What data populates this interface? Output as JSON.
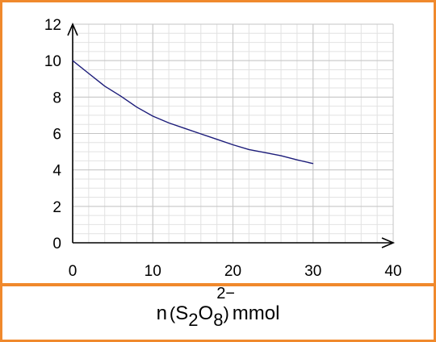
{
  "chart_data": {
    "type": "line",
    "title": "",
    "xlabel": "n(S2O8 2−) mmol",
    "ylabel": "",
    "xlim": [
      0,
      40
    ],
    "ylim": [
      0,
      12
    ],
    "x_ticks": [
      "0",
      "10",
      "20",
      "30",
      "40"
    ],
    "y_ticks": [
      "0",
      "2",
      "4",
      "6",
      "8",
      "10",
      "12"
    ],
    "grid": true,
    "series": [
      {
        "x": [
          0,
          2,
          4,
          6,
          8,
          10,
          12,
          14,
          16,
          18,
          20,
          22,
          24,
          26,
          28,
          30
        ],
        "values": [
          10.0,
          9.3,
          8.6,
          8.05,
          7.45,
          6.95,
          6.58,
          6.28,
          5.98,
          5.68,
          5.38,
          5.12,
          4.95,
          4.78,
          4.55,
          4.35
        ]
      }
    ]
  },
  "caption": {
    "n": "n",
    "open": "(",
    "s": "S",
    "sub2": "2",
    "o": "O",
    "sub8": "8",
    "sup": "2−",
    "close": ")",
    "unit": "mmol"
  },
  "colors": {
    "border": "#f0892c",
    "curve": "#1c1c7a",
    "minor_grid": "#e2e2e2",
    "major_grid": "#c4c4c4",
    "axis": "#000000"
  }
}
